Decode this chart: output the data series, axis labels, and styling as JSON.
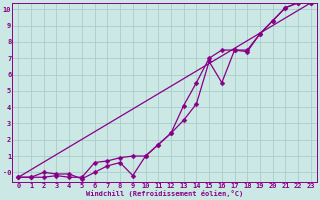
{
  "background_color": "#cce8e4",
  "grid_color": "#aacccc",
  "line_color": "#880088",
  "marker_color": "#880088",
  "xlabel": "Windchill (Refroidissement éolien,°C)",
  "ylim": [
    -0.6,
    10.4
  ],
  "xlim": [
    -0.5,
    23.5
  ],
  "line1_x": [
    0,
    1,
    2,
    3,
    4,
    5,
    6,
    7,
    8,
    9,
    10,
    11,
    12,
    13,
    14,
    15,
    16,
    17,
    18,
    19,
    20,
    21,
    22,
    23
  ],
  "line1_y": [
    -0.3,
    -0.3,
    -0.3,
    -0.2,
    -0.3,
    -0.3,
    0.6,
    0.7,
    0.9,
    1.0,
    1.0,
    1.7,
    2.4,
    4.1,
    5.5,
    7.0,
    7.5,
    7.5,
    7.5,
    8.5,
    9.3,
    10.1,
    10.4,
    10.4
  ],
  "line2_x": [
    0,
    1,
    2,
    3,
    4,
    5,
    6,
    7,
    8,
    9,
    10,
    11,
    12,
    13,
    14,
    15,
    16,
    17,
    18,
    19,
    20,
    21,
    22,
    23
  ],
  "line2_y": [
    -0.3,
    -0.3,
    -0.0,
    -0.1,
    -0.1,
    -0.4,
    0.0,
    0.4,
    0.6,
    -0.2,
    1.0,
    1.7,
    2.4,
    3.2,
    4.2,
    6.8,
    5.5,
    7.5,
    7.4,
    8.5,
    9.3,
    10.1,
    10.4,
    10.4
  ],
  "line3_x": [
    0,
    23
  ],
  "line3_y": [
    -0.3,
    10.4
  ],
  "xtick_vals": [
    0,
    1,
    2,
    3,
    4,
    5,
    6,
    7,
    8,
    9,
    10,
    11,
    12,
    13,
    14,
    15,
    16,
    17,
    18,
    19,
    20,
    21,
    22,
    23
  ],
  "xtick_labels": [
    "0",
    "1",
    "2",
    "3",
    "4",
    "5",
    "6",
    "7",
    "8",
    "9",
    "10",
    "11",
    "12",
    "13",
    "14",
    "15",
    "16",
    "17",
    "18",
    "19",
    "20",
    "21",
    "22",
    "23"
  ],
  "ytick_vals": [
    0,
    1,
    2,
    3,
    4,
    5,
    6,
    7,
    8,
    9,
    10
  ],
  "ytick_labels": [
    "-0",
    "1",
    "2",
    "3",
    "4",
    "5",
    "6",
    "7",
    "8",
    "9",
    "10"
  ],
  "font_color": "#880088",
  "label_fontsize": 5.0,
  "tick_fontsize": 5.0
}
